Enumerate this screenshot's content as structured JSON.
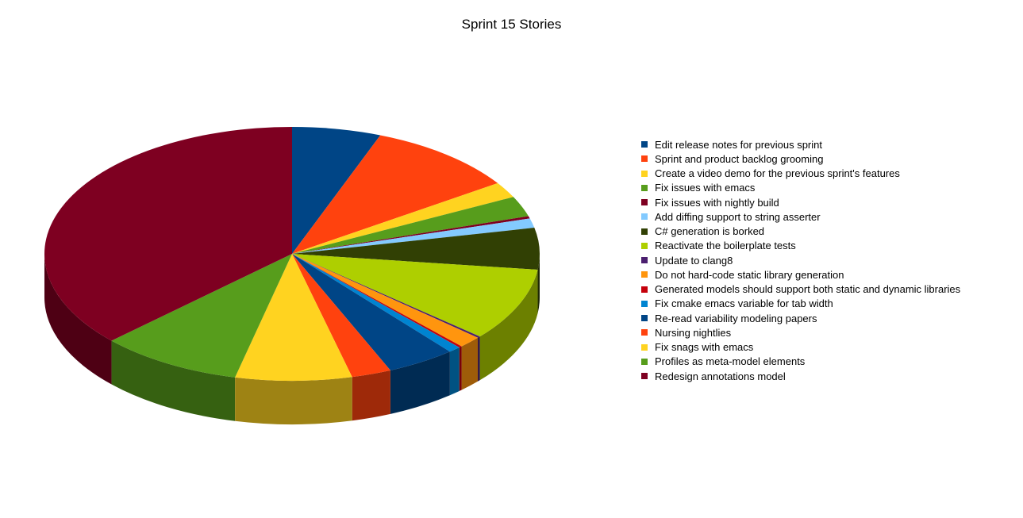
{
  "chart_data": {
    "type": "pie",
    "title": "Sprint 15 Stories",
    "legend_position": "right",
    "slices": [
      {
        "label": "Edit release notes for previous sprint",
        "value": 5.8,
        "color": "#004586"
      },
      {
        "label": "Sprint and product backlog grooming",
        "value": 9.8,
        "color": "#ff420e"
      },
      {
        "label": "Create a video demo for the previous sprint's features",
        "value": 2.0,
        "color": "#ffd320"
      },
      {
        "label": "Fix issues with emacs",
        "value": 2.6,
        "color": "#579d1c"
      },
      {
        "label": "Fix issues with nightly build",
        "value": 0.3,
        "color": "#7e0021"
      },
      {
        "label": "Add diffing support to string asserter",
        "value": 1.2,
        "color": "#83caff"
      },
      {
        "label": "C# generation is borked",
        "value": 5.3,
        "color": "#314004"
      },
      {
        "label": "Reactivate the boilerplate tests",
        "value": 9.3,
        "color": "#aecf00"
      },
      {
        "label": "Update to clang8",
        "value": 0.2,
        "color": "#4b1f6f"
      },
      {
        "label": "Do not hard-code static library generation",
        "value": 1.5,
        "color": "#ff950e"
      },
      {
        "label": "Generated models should support both static and dynamic libraries",
        "value": 0.2,
        "color": "#c5000b"
      },
      {
        "label": "Fix cmake emacs variable for tab width",
        "value": 0.8,
        "color": "#0084d1"
      },
      {
        "label": "Re-read variability modeling papers",
        "value": 4.5,
        "color": "#004586"
      },
      {
        "label": "Nursing nightlies",
        "value": 2.6,
        "color": "#ff420e"
      },
      {
        "label": "Fix snags with emacs",
        "value": 7.6,
        "color": "#ffd320"
      },
      {
        "label": "Profiles as meta-model elements",
        "value": 9.3,
        "color": "#579d1c"
      },
      {
        "label": "Redesign annotations model",
        "value": 37.0,
        "color": "#7e0021"
      }
    ]
  }
}
